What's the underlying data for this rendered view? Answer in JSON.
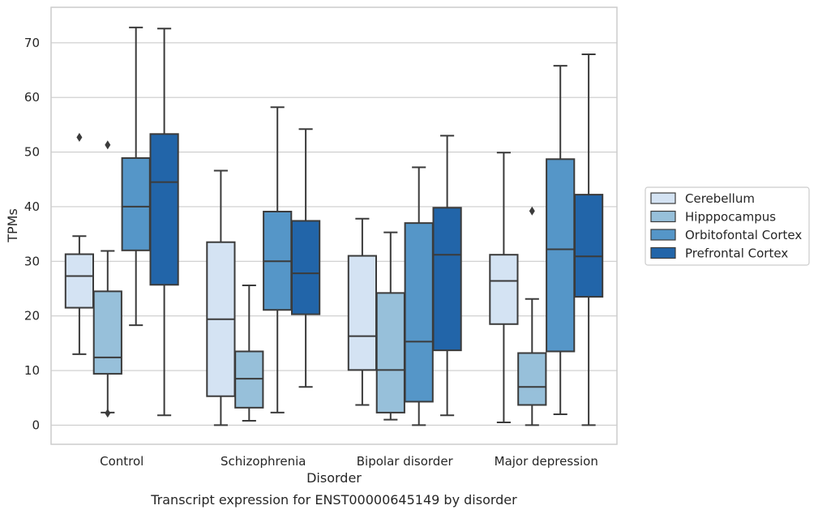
{
  "chart_data": {
    "type": "box",
    "caption": "Transcript expression for ENST00000645149 by disorder",
    "xlabel": "Disorder",
    "ylabel": "TPMs",
    "ylim": [
      -3.5,
      76.5
    ],
    "yticks": [
      0,
      10,
      20,
      30,
      40,
      50,
      60,
      70
    ],
    "grid": true,
    "legend_position": "right",
    "categories": [
      "Control",
      "Schizophrenia",
      "Bipolar disorder",
      "Major depression"
    ],
    "series": [
      {
        "name": "Cerebellum",
        "color": "#d4e3f3",
        "boxes": [
          {
            "whisker_low": 13,
            "q1": 21.5,
            "median": 27.3,
            "q3": 31.3,
            "whisker_high": 34.6,
            "outliers": [
              52.7
            ]
          },
          {
            "whisker_low": 0,
            "q1": 5.3,
            "median": 19.4,
            "q3": 33.5,
            "whisker_high": 46.6,
            "outliers": []
          },
          {
            "whisker_low": 3.7,
            "q1": 10.1,
            "median": 16.3,
            "q3": 31,
            "whisker_high": 37.8,
            "outliers": []
          },
          {
            "whisker_low": 0.5,
            "q1": 18.5,
            "median": 26.4,
            "q3": 31.2,
            "whisker_high": 49.9,
            "outliers": []
          }
        ]
      },
      {
        "name": "Hipppocampus",
        "color": "#97c0da",
        "boxes": [
          {
            "whisker_low": 2.3,
            "q1": 9.4,
            "median": 12.4,
            "q3": 24.5,
            "whisker_high": 31.9,
            "outliers": [
              51.3,
              2.2
            ]
          },
          {
            "whisker_low": 0.8,
            "q1": 3.2,
            "median": 8.5,
            "q3": 13.5,
            "whisker_high": 25.6,
            "outliers": []
          },
          {
            "whisker_low": 1,
            "q1": 2.3,
            "median": 10.1,
            "q3": 24.2,
            "whisker_high": 35.3,
            "outliers": []
          },
          {
            "whisker_low": 0,
            "q1": 3.7,
            "median": 7,
            "q3": 13.2,
            "whisker_high": 23.1,
            "outliers": [
              39.2
            ]
          }
        ]
      },
      {
        "name": "Orbitofontal Cortex",
        "color": "#5596c8",
        "boxes": [
          {
            "whisker_low": 18.3,
            "q1": 32,
            "median": 40,
            "q3": 48.9,
            "whisker_high": 72.8,
            "outliers": []
          },
          {
            "whisker_low": 2.3,
            "q1": 21.1,
            "median": 30,
            "q3": 39.1,
            "whisker_high": 58.2,
            "outliers": []
          },
          {
            "whisker_low": 0,
            "q1": 4.3,
            "median": 15.3,
            "q3": 37,
            "whisker_high": 47.2,
            "outliers": []
          },
          {
            "whisker_low": 2,
            "q1": 13.5,
            "median": 32.2,
            "q3": 48.7,
            "whisker_high": 65.8,
            "outliers": []
          }
        ]
      },
      {
        "name": "Prefrontal Cortex",
        "color": "#2265a9",
        "boxes": [
          {
            "whisker_low": 1.8,
            "q1": 25.7,
            "median": 44.5,
            "q3": 53.3,
            "whisker_high": 72.6,
            "outliers": []
          },
          {
            "whisker_low": 7,
            "q1": 20.3,
            "median": 27.8,
            "q3": 37.4,
            "whisker_high": 54.2,
            "outliers": []
          },
          {
            "whisker_low": 1.8,
            "q1": 13.7,
            "median": 31.2,
            "q3": 39.8,
            "whisker_high": 53,
            "outliers": []
          },
          {
            "whisker_low": 0,
            "q1": 23.5,
            "median": 30.9,
            "q3": 42.2,
            "whisker_high": 67.9,
            "outliers": []
          }
        ]
      }
    ]
  }
}
